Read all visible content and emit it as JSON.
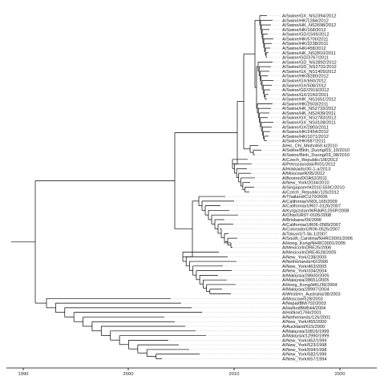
{
  "figure": {
    "type": "phylogenetic-tree",
    "colors": {
      "branch": "#000000",
      "guide_dots": "#9a9a9a",
      "axis": "#000000",
      "text": "#111111"
    },
    "axis": {
      "ticks": [
        "1990",
        "2000",
        "2010",
        "2020"
      ]
    },
    "leaves": [
      "A/Swine/GX_NS2394/2012",
      "A/Swine/HK/1284/2012",
      "A/Swine/HK_NS2698/2012",
      "A/Swine/HK/168/2012",
      "A/Swine/GD/1599/2012",
      "A/Swine/HK/5700/2011",
      "A/Swine/HK/3238/2011",
      "A/Swine/HK/458/2012",
      "A/Swine/HK_NS2810/2011",
      "A/Swine/GD/3767/2011",
      "A/Swine/GD_NS2892/2012",
      "A/Swine/GD_NS2701/2012",
      "A/Swine/GX_NS1409/2012",
      "A/Swine/HK/8280/2012",
      "A/Swine/GX/650/2012",
      "A/Swine/GX/508/2012",
      "A/Swine/GD/2919/2012",
      "A/Swine/GX/2242/2011",
      "A/Swine/HK_NS1651/2012",
      "A/Swine/HK/2503/2011",
      "A/Swine/HK_NS2733/2012",
      "A/Swine/HK_NS2439/2011",
      "A/Swine/GX_NS2783/2012",
      "A/Swine/GX_NS3108/2011",
      "A/Swine/GX/2803/2011",
      "A/Swine/HK/2454/2012",
      "A/Swine/HK/1071/2012",
      "A/Swine/HK/687/2011",
      "A/Ho_Chi_Minh/459.6/2010",
      "A/Swine/Binh_Duong/03_10/2010",
      "A/Swine/Binh_Duong/03_08/2010",
      "A/Czech_Republic/1/8/2012",
      "A/Petrozavodsk/R/01/2012",
      "A/Hokkaido/30-1-a/2013",
      "A/Moscow/R/05/2012",
      "A/Boston/DOA52/2011",
      "A/New_York/2034/2010",
      "A/Singapore/H2010.559C/2010",
      "A/Czech_Republic/126/2012",
      "A/Thailand/CU70/2006",
      "A/California/VRDL165/2009",
      "A/California/UR07-0126/2007",
      "A/Kyrgyzstan/WRAIR1255P/2008",
      "A/Ohio/UR07-0105/2008",
      "A/Brisbane/09/2006",
      "A/California/UR06-0589/2007",
      "A/Colorado/UR06-0525/2007",
      "A/Tokyo/UT-Sk-1/2007",
      "A/South_Carolina/NHRC0001/2006",
      "A/Hong_Kong/NHRC0001/2005",
      "A/Mexico/InDRE25/2006",
      "A/Mexico/InDRE4528/2005",
      "A/New_York/238/2005",
      "A/Netherlands/42/2006",
      "A/New_York/463/2005",
      "A/New_York/334/2004",
      "A/Malaysia/28600/2005",
      "A/Malaysia/28651/2005",
      "A/Hong_Kong/HKU39/2004",
      "A/Malaysia/28997/2004",
      "A/Western_Australia/38/2003",
      "A/Moscow/528/2003",
      "A/Nepal/BM/702/2003",
      "A/HaNoi/BM544/2004",
      "A/HaNoi/1766/2001",
      "A/Netherlands/126/2001",
      "A/New_York/455/2000",
      "A/Auckland/615/2000",
      "A/Malaysia/10816/1999",
      "A/Malaysia/12990/1999",
      "A/New_York/452/1999",
      "A/New_York/523/1998",
      "A/New_York/594/1998",
      "A/New_York/582/1996",
      "A/New_York/657/1994"
    ]
  }
}
